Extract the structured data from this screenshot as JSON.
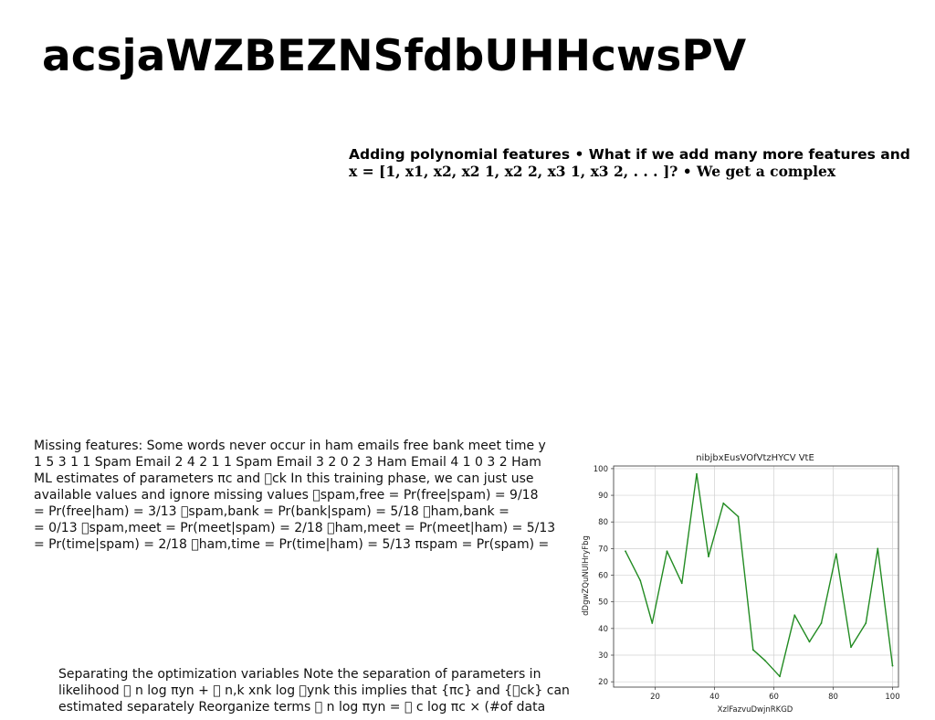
{
  "title": "acsjaWZBEZNSfdbUHHcwsPV",
  "heading_block": {
    "lines": [
      "Adding polynomial features • What if we add many more features and",
      "x = [1, x1, x2, x2 1, x2 2, x3 1, x3 2, . . . ]? • We get a complex"
    ]
  },
  "paragraph_missing_features": {
    "lines": [
      "Missing features: Some words never occur in ham emails free bank meet time y",
      "1 5 3 1 1 Spam Email 2 4 2 1 1 Spam Email 3 2 0 2 3 Ham Email 4 1 0 3 2 Ham",
      "ML estimates of parameters πc and \u0000ck In this training phase, we can just use",
      "available values and ignore missing values \u0000spam,free = Pr(free|spam) = 9/18",
      "= Pr(free|ham) = 3/13 \u0000spam,bank = Pr(bank|spam) = 5/18 \u0000ham,bank =",
      "= 0/13 \u0000spam,meet = Pr(meet|spam) = 2/18 \u0000ham,meet = Pr(meet|ham) = 5/13",
      "= Pr(time|spam) = 2/18 \u0000ham,time = Pr(time|ham) = 5/13 πspam = Pr(spam) ="
    ]
  },
  "paragraph_separating": {
    "lines": [
      "Separating the optimization variables Note the separation of parameters in",
      "likelihood \u0000 n log πyn + \u0000 n,k xnk log \u0000ynk this implies that {πc} and {\u0000ck} can",
      "estimated separately Reorganize terms \u0000 n log πyn = \u0000 c log πc × (#of data"
    ]
  },
  "chart_data": {
    "type": "line",
    "title": "nibjbxEusVOfVtzHYCV VtE",
    "xlabel": "XzlFazvuDwjnRKGD",
    "ylabel": "dDgwZQuNUlHryFbg",
    "xlim": [
      6,
      102
    ],
    "ylim": [
      18,
      101
    ],
    "xticks": [
      20,
      40,
      60,
      80,
      100
    ],
    "yticks": [
      20,
      30,
      40,
      50,
      60,
      70,
      80,
      90,
      100
    ],
    "grid": true,
    "line_color": "#228B22",
    "x": [
      10,
      15,
      19,
      24,
      29,
      34,
      38,
      43,
      48,
      53,
      57,
      62,
      67,
      72,
      76,
      81,
      86,
      91,
      95,
      100
    ],
    "y": [
      69,
      58,
      42,
      69,
      57,
      98,
      67,
      87,
      82,
      32,
      28,
      22,
      45,
      35,
      42,
      68,
      33,
      42,
      70,
      26
    ]
  }
}
